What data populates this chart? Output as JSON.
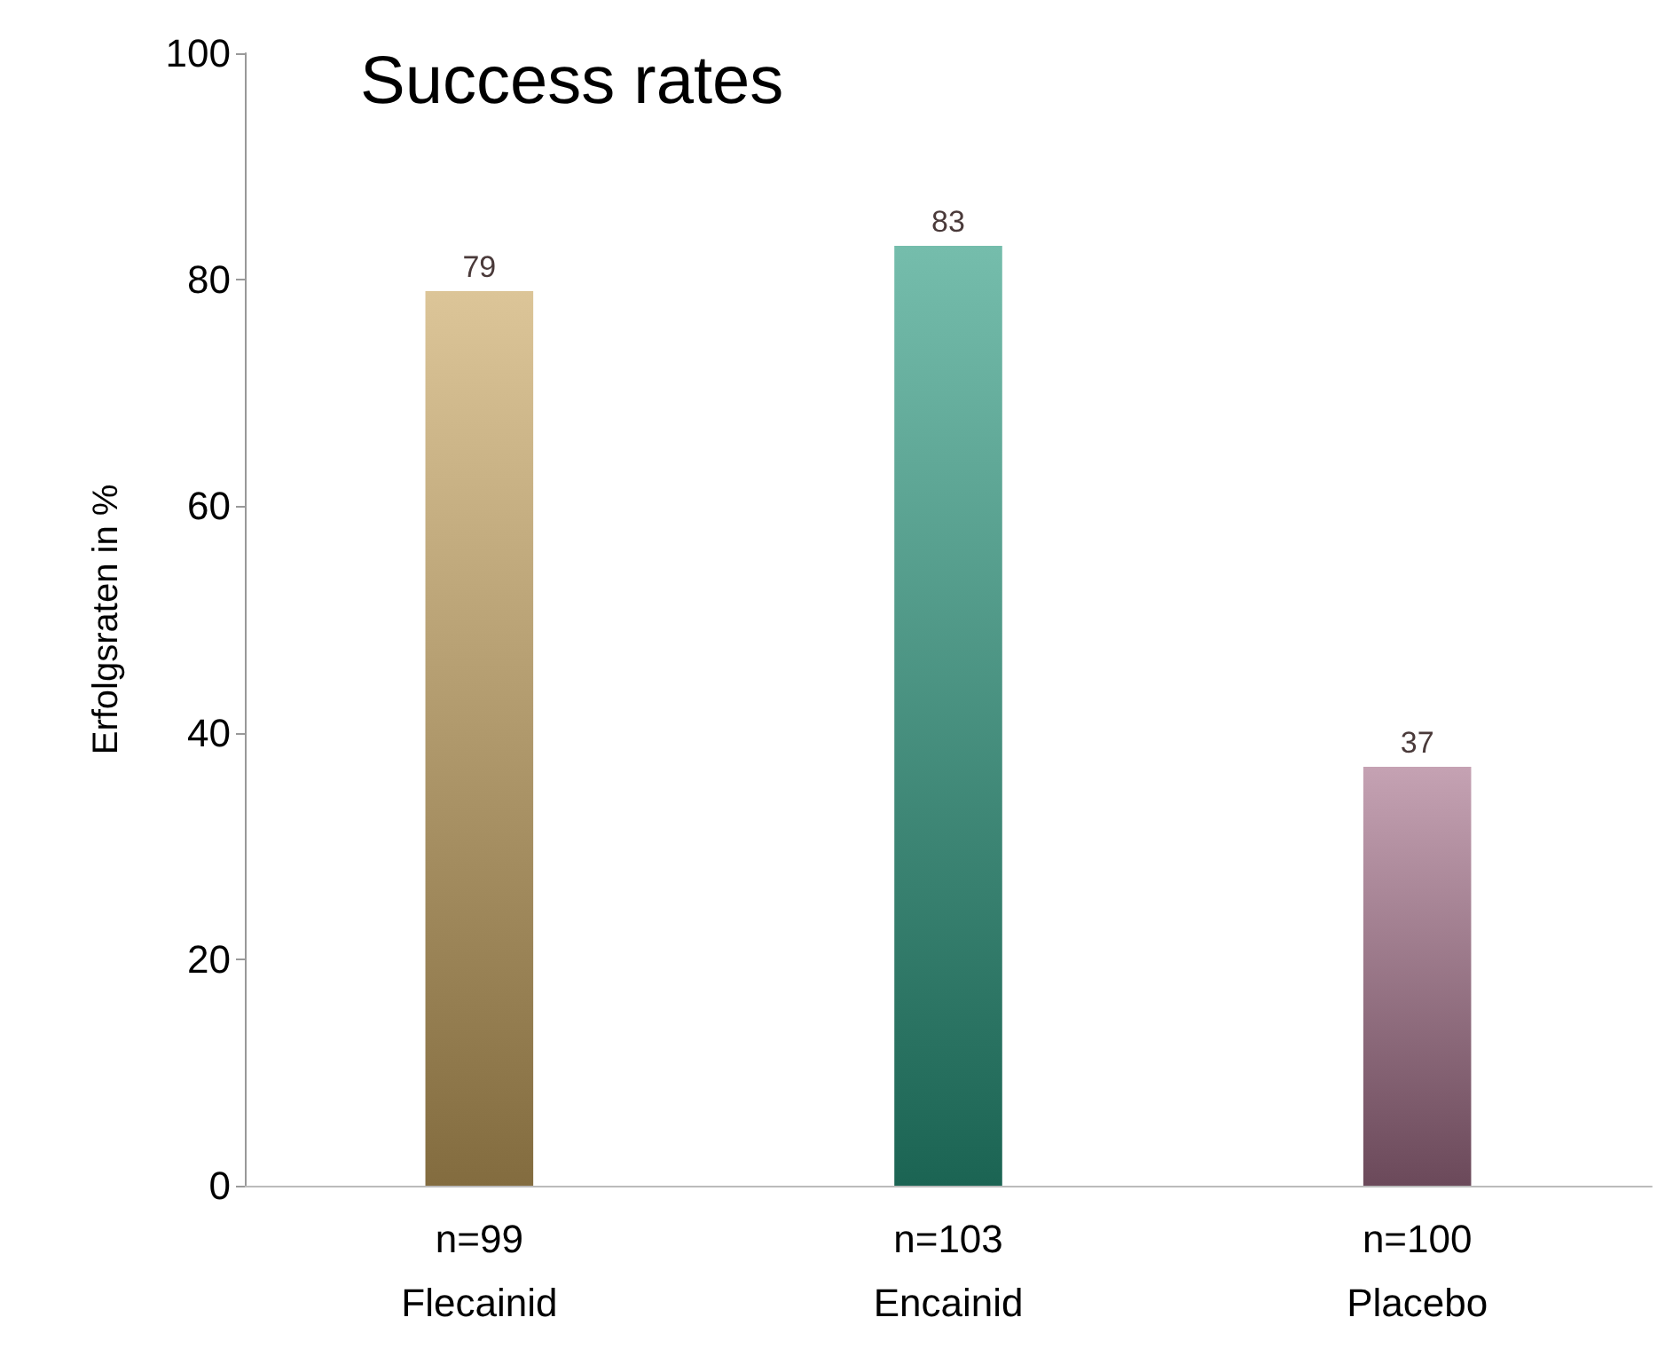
{
  "chart_data": {
    "type": "bar",
    "title": "Success rates",
    "ylabel": "Erfolgsraten in %",
    "categories": [
      "n=99\nFlecainid",
      "n=103\nEncainid",
      "n=100\nPlacebo"
    ],
    "values": [
      79,
      83,
      37
    ],
    "colors": [
      "#c9a661",
      "#2a9a80",
      "#a5708a"
    ],
    "ylim": [
      0,
      100
    ],
    "yticks": [
      0,
      20,
      40,
      60,
      80,
      100
    ],
    "grid": false,
    "data_labels": true
  }
}
